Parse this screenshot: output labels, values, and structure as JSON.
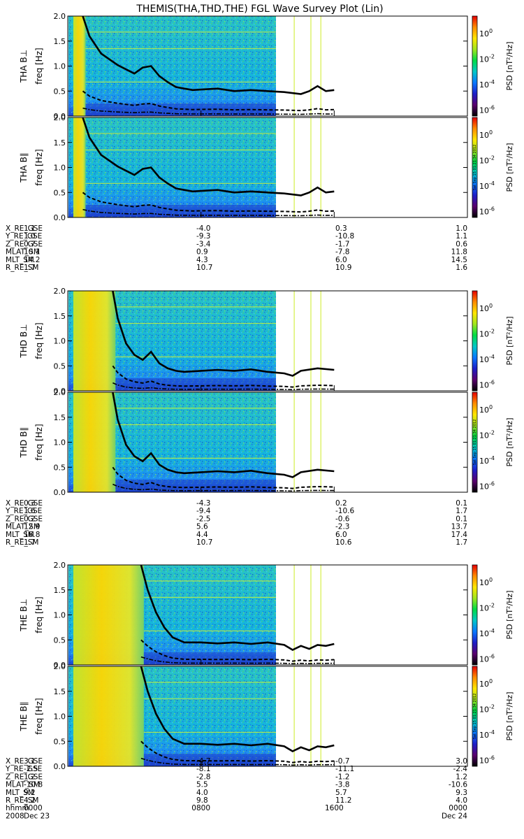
{
  "title": "THEMIS(THA,THD,THE) FGL Wave Survey Plot (Lin)",
  "colorbar": {
    "label": "PSD [nT²/Hz]",
    "ticks": [
      {
        "base": "10",
        "exp": "0"
      },
      {
        "base": "10",
        "exp": "-2"
      },
      {
        "base": "10",
        "exp": "-4"
      },
      {
        "base": "10",
        "exp": "-6"
      }
    ],
    "stamp": "Sat Sep 15 01:21:34 2012",
    "colors": [
      "#000000",
      "#5a006e",
      "#1e1ec8",
      "#0a78ff",
      "#00c8c8",
      "#00dc46",
      "#a0e61e",
      "#ffe600",
      "#ff8c00",
      "#e60000"
    ]
  },
  "chart_data": {
    "type": "heatmap",
    "x_axis": {
      "range_hhmm": [
        "0000",
        "2400"
      ],
      "ticks": [
        "0000",
        "0800",
        "1600",
        "0000"
      ],
      "date_ticks": [
        "Dec 23",
        "",
        "",
        "Dec 24"
      ],
      "row_label": "hhmm",
      "year": "2008",
      "data_coverage_end": "1600"
    },
    "y_axis": {
      "label": "freq [Hz]",
      "range": [
        0.0,
        2.0
      ],
      "ticks": [
        "0.0",
        "0.5",
        "1.0",
        "1.5",
        "2.0"
      ]
    },
    "probes": [
      {
        "panels": [
          {
            "name": "THA B⊥",
            "curve_time": [
              0.9,
              1.3,
              2.0,
              3.0,
              4.0,
              4.5,
              5.0,
              5.5,
              6.0,
              6.5,
              7.0,
              7.5,
              8.0,
              9.0,
              10.0,
              11.0,
              12.0,
              13.0,
              14.0,
              14.5,
              15.0,
              15.5,
              16.0
            ],
            "curve_freq": [
              2.0,
              1.6,
              1.25,
              1.02,
              0.85,
              0.97,
              1.0,
              0.8,
              0.68,
              0.58,
              0.55,
              0.52,
              0.53,
              0.55,
              0.5,
              0.52,
              0.5,
              0.48,
              0.44,
              0.5,
              0.6,
              0.5,
              0.52
            ]
          },
          {
            "name": "THA B∥",
            "curve_time": [
              0.9,
              1.3,
              2.0,
              3.0,
              4.0,
              4.5,
              5.0,
              5.5,
              6.0,
              6.5,
              7.0,
              7.5,
              8.0,
              9.0,
              10.0,
              11.0,
              12.0,
              13.0,
              14.0,
              14.5,
              15.0,
              15.5,
              16.0
            ],
            "curve_freq": [
              2.0,
              1.6,
              1.25,
              1.02,
              0.85,
              0.97,
              1.0,
              0.8,
              0.68,
              0.58,
              0.55,
              0.52,
              0.53,
              0.55,
              0.5,
              0.52,
              0.5,
              0.48,
              0.44,
              0.5,
              0.6,
              0.5,
              0.52
            ]
          }
        ],
        "ephemeris": [
          {
            "label": "X_RE_GSE",
            "values": [
              "1.1",
              "-4.0",
              "0.3",
              "1.0"
            ]
          },
          {
            "label": "Y_RE_GSE",
            "values": [
              "1.0",
              "-9.3",
              "-10.8",
              "1.1"
            ]
          },
          {
            "label": "Z_RE_GSE",
            "values": [
              "0.7",
              "-3.4",
              "-1.7",
              "0.6"
            ]
          },
          {
            "label": "MLAT_SM",
            "values": [
              "10.1",
              "0.9",
              "-7.8",
              "11.8"
            ]
          },
          {
            "label": "MLT_SM",
            "values": [
              "14.2",
              "4.3",
              "6.0",
              "14.5"
            ]
          },
          {
            "label": "R_RE_SM",
            "values": [
              "1.7",
              "10.7",
              "10.9",
              "1.6"
            ]
          }
        ]
      },
      {
        "panels": [
          {
            "name": "THD B⊥",
            "curve_time": [
              2.7,
              3.0,
              3.5,
              4.0,
              4.5,
              5.0,
              5.5,
              6.0,
              6.5,
              7.0,
              8.0,
              9.0,
              10.0,
              11.0,
              12.0,
              13.0,
              13.5,
              14.0,
              15.0,
              16.0
            ],
            "curve_freq": [
              2.0,
              1.45,
              0.95,
              0.72,
              0.62,
              0.78,
              0.55,
              0.45,
              0.4,
              0.38,
              0.4,
              0.42,
              0.4,
              0.43,
              0.38,
              0.35,
              0.3,
              0.4,
              0.45,
              0.42
            ]
          },
          {
            "name": "THD B∥",
            "curve_time": [
              2.7,
              3.0,
              3.5,
              4.0,
              4.5,
              5.0,
              5.5,
              6.0,
              6.5,
              7.0,
              8.0,
              9.0,
              10.0,
              11.0,
              12.0,
              13.0,
              13.5,
              14.0,
              15.0,
              16.0
            ],
            "curve_freq": [
              2.0,
              1.45,
              0.95,
              0.72,
              0.62,
              0.78,
              0.55,
              0.45,
              0.4,
              0.38,
              0.4,
              0.42,
              0.4,
              0.43,
              0.38,
              0.35,
              0.3,
              0.4,
              0.45,
              0.42
            ]
          }
        ],
        "ephemeris": [
          {
            "label": "X_RE_GSE",
            "values": [
              "0.3",
              "-4.3",
              "0.2",
              "0.1"
            ]
          },
          {
            "label": "Y_RE_GSE",
            "values": [
              "1.6",
              "-9.4",
              "-10.6",
              "1.7"
            ]
          },
          {
            "label": "Z_RE_GSE",
            "values": [
              "0.2",
              "-2.5",
              "-0.6",
              "0.1"
            ]
          },
          {
            "label": "MLAT_SM",
            "values": [
              "12.9",
              "5.6",
              "-2.3",
              "13.7"
            ]
          },
          {
            "label": "MLT_SM",
            "values": [
              "16.8",
              "4.4",
              "6.0",
              "17.4"
            ]
          },
          {
            "label": "R_RE_SM",
            "values": [
              "1.7",
              "10.7",
              "10.6",
              "1.7"
            ]
          }
        ]
      },
      {
        "panels": [
          {
            "name": "THE B⊥",
            "curve_time": [
              4.4,
              4.8,
              5.3,
              5.8,
              6.3,
              7.0,
              8.0,
              9.0,
              10.0,
              11.0,
              12.0,
              13.0,
              13.5,
              14.0,
              14.5,
              15.0,
              15.5,
              16.0
            ],
            "curve_freq": [
              2.0,
              1.5,
              1.05,
              0.75,
              0.55,
              0.45,
              0.45,
              0.43,
              0.45,
              0.42,
              0.45,
              0.4,
              0.3,
              0.38,
              0.32,
              0.4,
              0.38,
              0.42
            ]
          },
          {
            "name": "THE B∥",
            "curve_time": [
              4.4,
              4.8,
              5.3,
              5.8,
              6.3,
              7.0,
              8.0,
              9.0,
              10.0,
              11.0,
              12.0,
              13.0,
              13.5,
              14.0,
              14.5,
              15.0,
              15.5,
              16.0
            ],
            "curve_freq": [
              2.0,
              1.5,
              1.05,
              0.75,
              0.55,
              0.45,
              0.45,
              0.43,
              0.45,
              0.42,
              0.45,
              0.4,
              0.3,
              0.38,
              0.32,
              0.4,
              0.38,
              0.42
            ]
          }
        ],
        "ephemeris": [
          {
            "label": "X_RE_GSE",
            "values": [
              "3.1",
              "-4.7",
              "-0.7",
              "3.0"
            ]
          },
          {
            "label": "Y_RE_GSE",
            "values": [
              "-2.5",
              "-8.1",
              "-11.1",
              "-2.4"
            ]
          },
          {
            "label": "Z_RE_GSE",
            "values": [
              "1.2",
              "-2.8",
              "-1.2",
              "1.2"
            ]
          },
          {
            "label": "MLAT_SM",
            "values": [
              "-10.8",
              "5.5",
              "-3.8",
              "-10.6"
            ]
          },
          {
            "label": "MLT_SM",
            "values": [
              "9.2",
              "4.0",
              "5.7",
              "9.3"
            ]
          },
          {
            "label": "R_RE_SM",
            "values": [
              "4.2",
              "9.8",
              "11.2",
              "4.0"
            ]
          }
        ]
      }
    ]
  }
}
